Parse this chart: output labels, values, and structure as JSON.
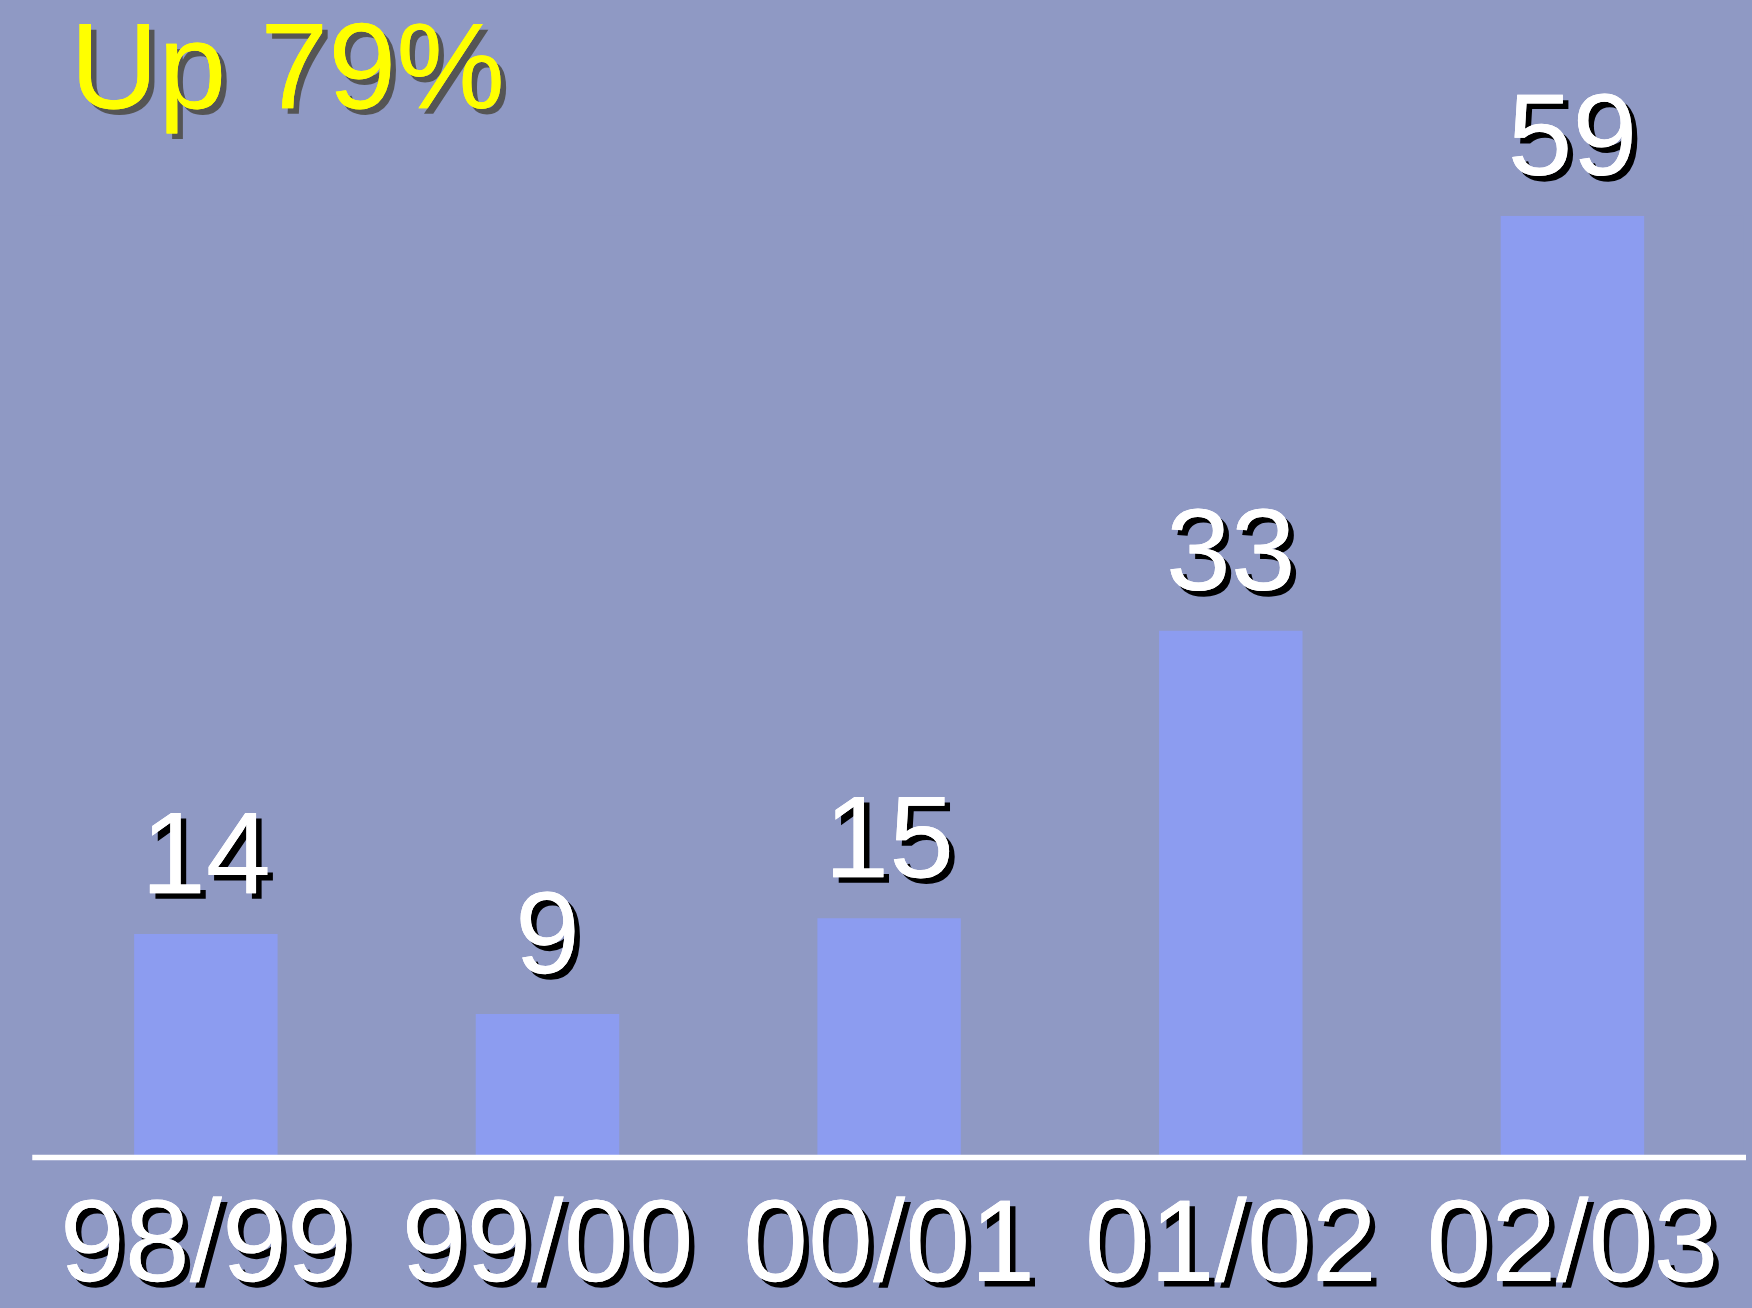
{
  "chart_data": {
    "type": "bar",
    "title": "Up 79%",
    "categories": [
      "98/99",
      "99/00",
      "00/01",
      "01/02",
      "02/03"
    ],
    "values": [
      14,
      9,
      15,
      33,
      59
    ],
    "color": "#8c9cf0",
    "data_labels": true,
    "grid": false,
    "legend": false
  }
}
